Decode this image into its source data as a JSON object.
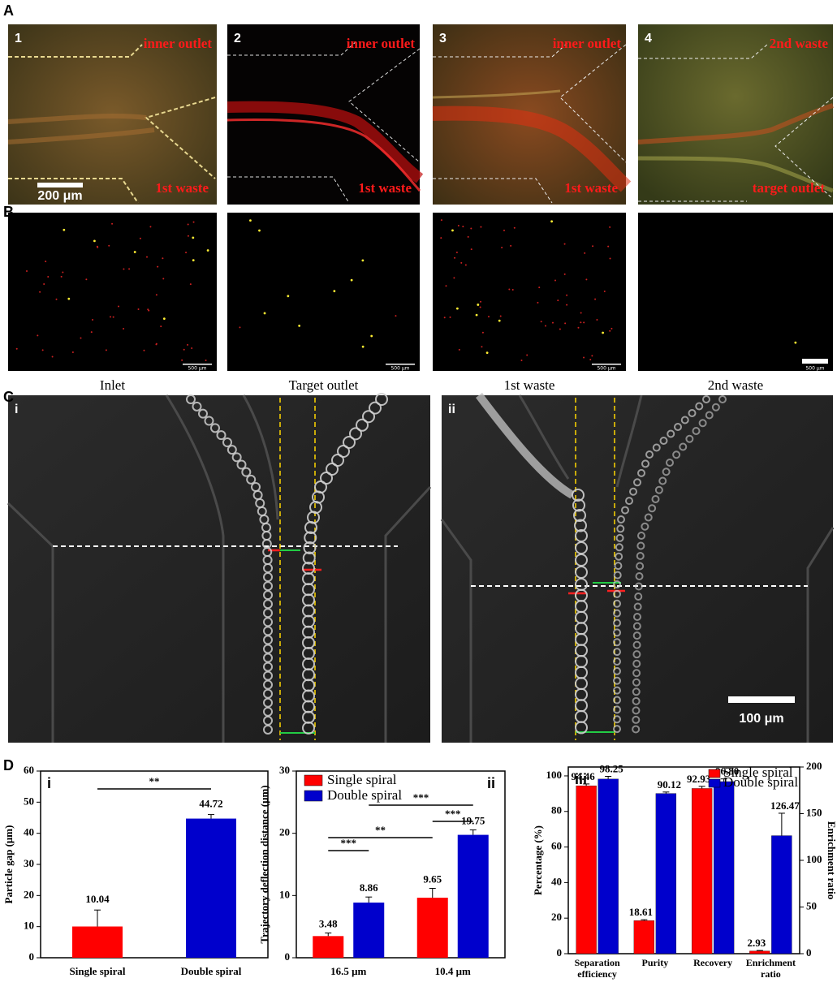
{
  "panel_a": {
    "label": "A",
    "images": [
      {
        "number": "1",
        "top_label": "inner outlet",
        "bottom_label": "1st waste",
        "scale_bar": "200 μm"
      },
      {
        "number": "2",
        "top_label": "inner outlet",
        "bottom_label": "1st waste"
      },
      {
        "number": "3",
        "top_label": "inner outlet",
        "bottom_label": "1st waste"
      },
      {
        "number": "4",
        "top_label": "2nd waste",
        "bottom_label": "target outlet"
      }
    ]
  },
  "panel_b": {
    "label": "B",
    "images": [
      {
        "caption": "Inlet",
        "scale_bar": "500 μm"
      },
      {
        "caption": "Target outlet",
        "scale_bar": "500 μm"
      },
      {
        "caption": "1st waste",
        "scale_bar": "500 μm"
      },
      {
        "caption": "2nd waste",
        "scale_bar": "500 μm"
      }
    ]
  },
  "panel_c": {
    "label": "C",
    "images": [
      {
        "number": "i"
      },
      {
        "number": "ii",
        "scale_bar": "100 μm"
      }
    ]
  },
  "panel_d": {
    "label": "D"
  },
  "chart_data": [
    {
      "type": "bar",
      "panel": "i",
      "categories": [
        "Single spiral",
        "Double spiral"
      ],
      "values": [
        10.04,
        44.72
      ],
      "errors": [
        5.3,
        1.3
      ],
      "colors": [
        "#ff0000",
        "#0000cc"
      ],
      "y_label": "Particle gap (μm)",
      "ylim": [
        0,
        60
      ],
      "yticks": [
        0,
        10,
        20,
        30,
        40,
        50,
        60
      ],
      "annotations": [
        "**"
      ]
    },
    {
      "type": "grouped_bar",
      "panel": "ii",
      "categories": [
        "16.5 μm",
        "10.4 μm"
      ],
      "series": [
        {
          "name": "Single spiral",
          "color": "#ff0000",
          "values": [
            3.48,
            9.65
          ],
          "errors": [
            0.5,
            1.5
          ]
        },
        {
          "name": "Double spiral",
          "color": "#0000cc",
          "values": [
            8.86,
            19.75
          ],
          "errors": [
            0.9,
            0.8
          ]
        }
      ],
      "y_label": "Trajectory deflection distance (μm)",
      "ylim": [
        0,
        30
      ],
      "yticks": [
        0,
        10,
        20,
        30
      ],
      "legend": "upper left",
      "annotations": [
        "***",
        "**",
        "***",
        "***"
      ]
    },
    {
      "type": "dual_axis_bar",
      "panel": "iii",
      "categories": [
        "Separation efficiency",
        "Purity",
        "Recovery",
        "Enrichment ratio"
      ],
      "series": [
        {
          "name": "Single spiral",
          "color": "#ff0000",
          "values": [
            94.46,
            18.61,
            92.93,
            null
          ],
          "errors": [
            1,
            0.5,
            1.2,
            null
          ],
          "y2_values": [
            null,
            null,
            null,
            2.93
          ],
          "y2_errors": [
            null,
            null,
            null,
            0.5
          ]
        },
        {
          "name": "Double spiral",
          "color": "#0000cc",
          "values": [
            98.25,
            90.12,
            96.8,
            null
          ],
          "value_labels": [
            "98.25",
            "90.12",
            "96.80",
            null
          ],
          "errors": [
            1.5,
            0.8,
            1.5,
            null
          ],
          "y2_values": [
            null,
            null,
            null,
            126.47
          ],
          "y2_errors": [
            null,
            null,
            null,
            24
          ]
        }
      ],
      "y_label": "Percentage (%)",
      "y2_label": "Enrichment ratio",
      "ylim": [
        0,
        105
      ],
      "yticks": [
        0,
        20,
        40,
        60,
        80,
        100
      ],
      "y2lim": [
        0,
        200
      ],
      "y2ticks": [
        0,
        50,
        100,
        150,
        200
      ],
      "legend": "upper right"
    }
  ]
}
